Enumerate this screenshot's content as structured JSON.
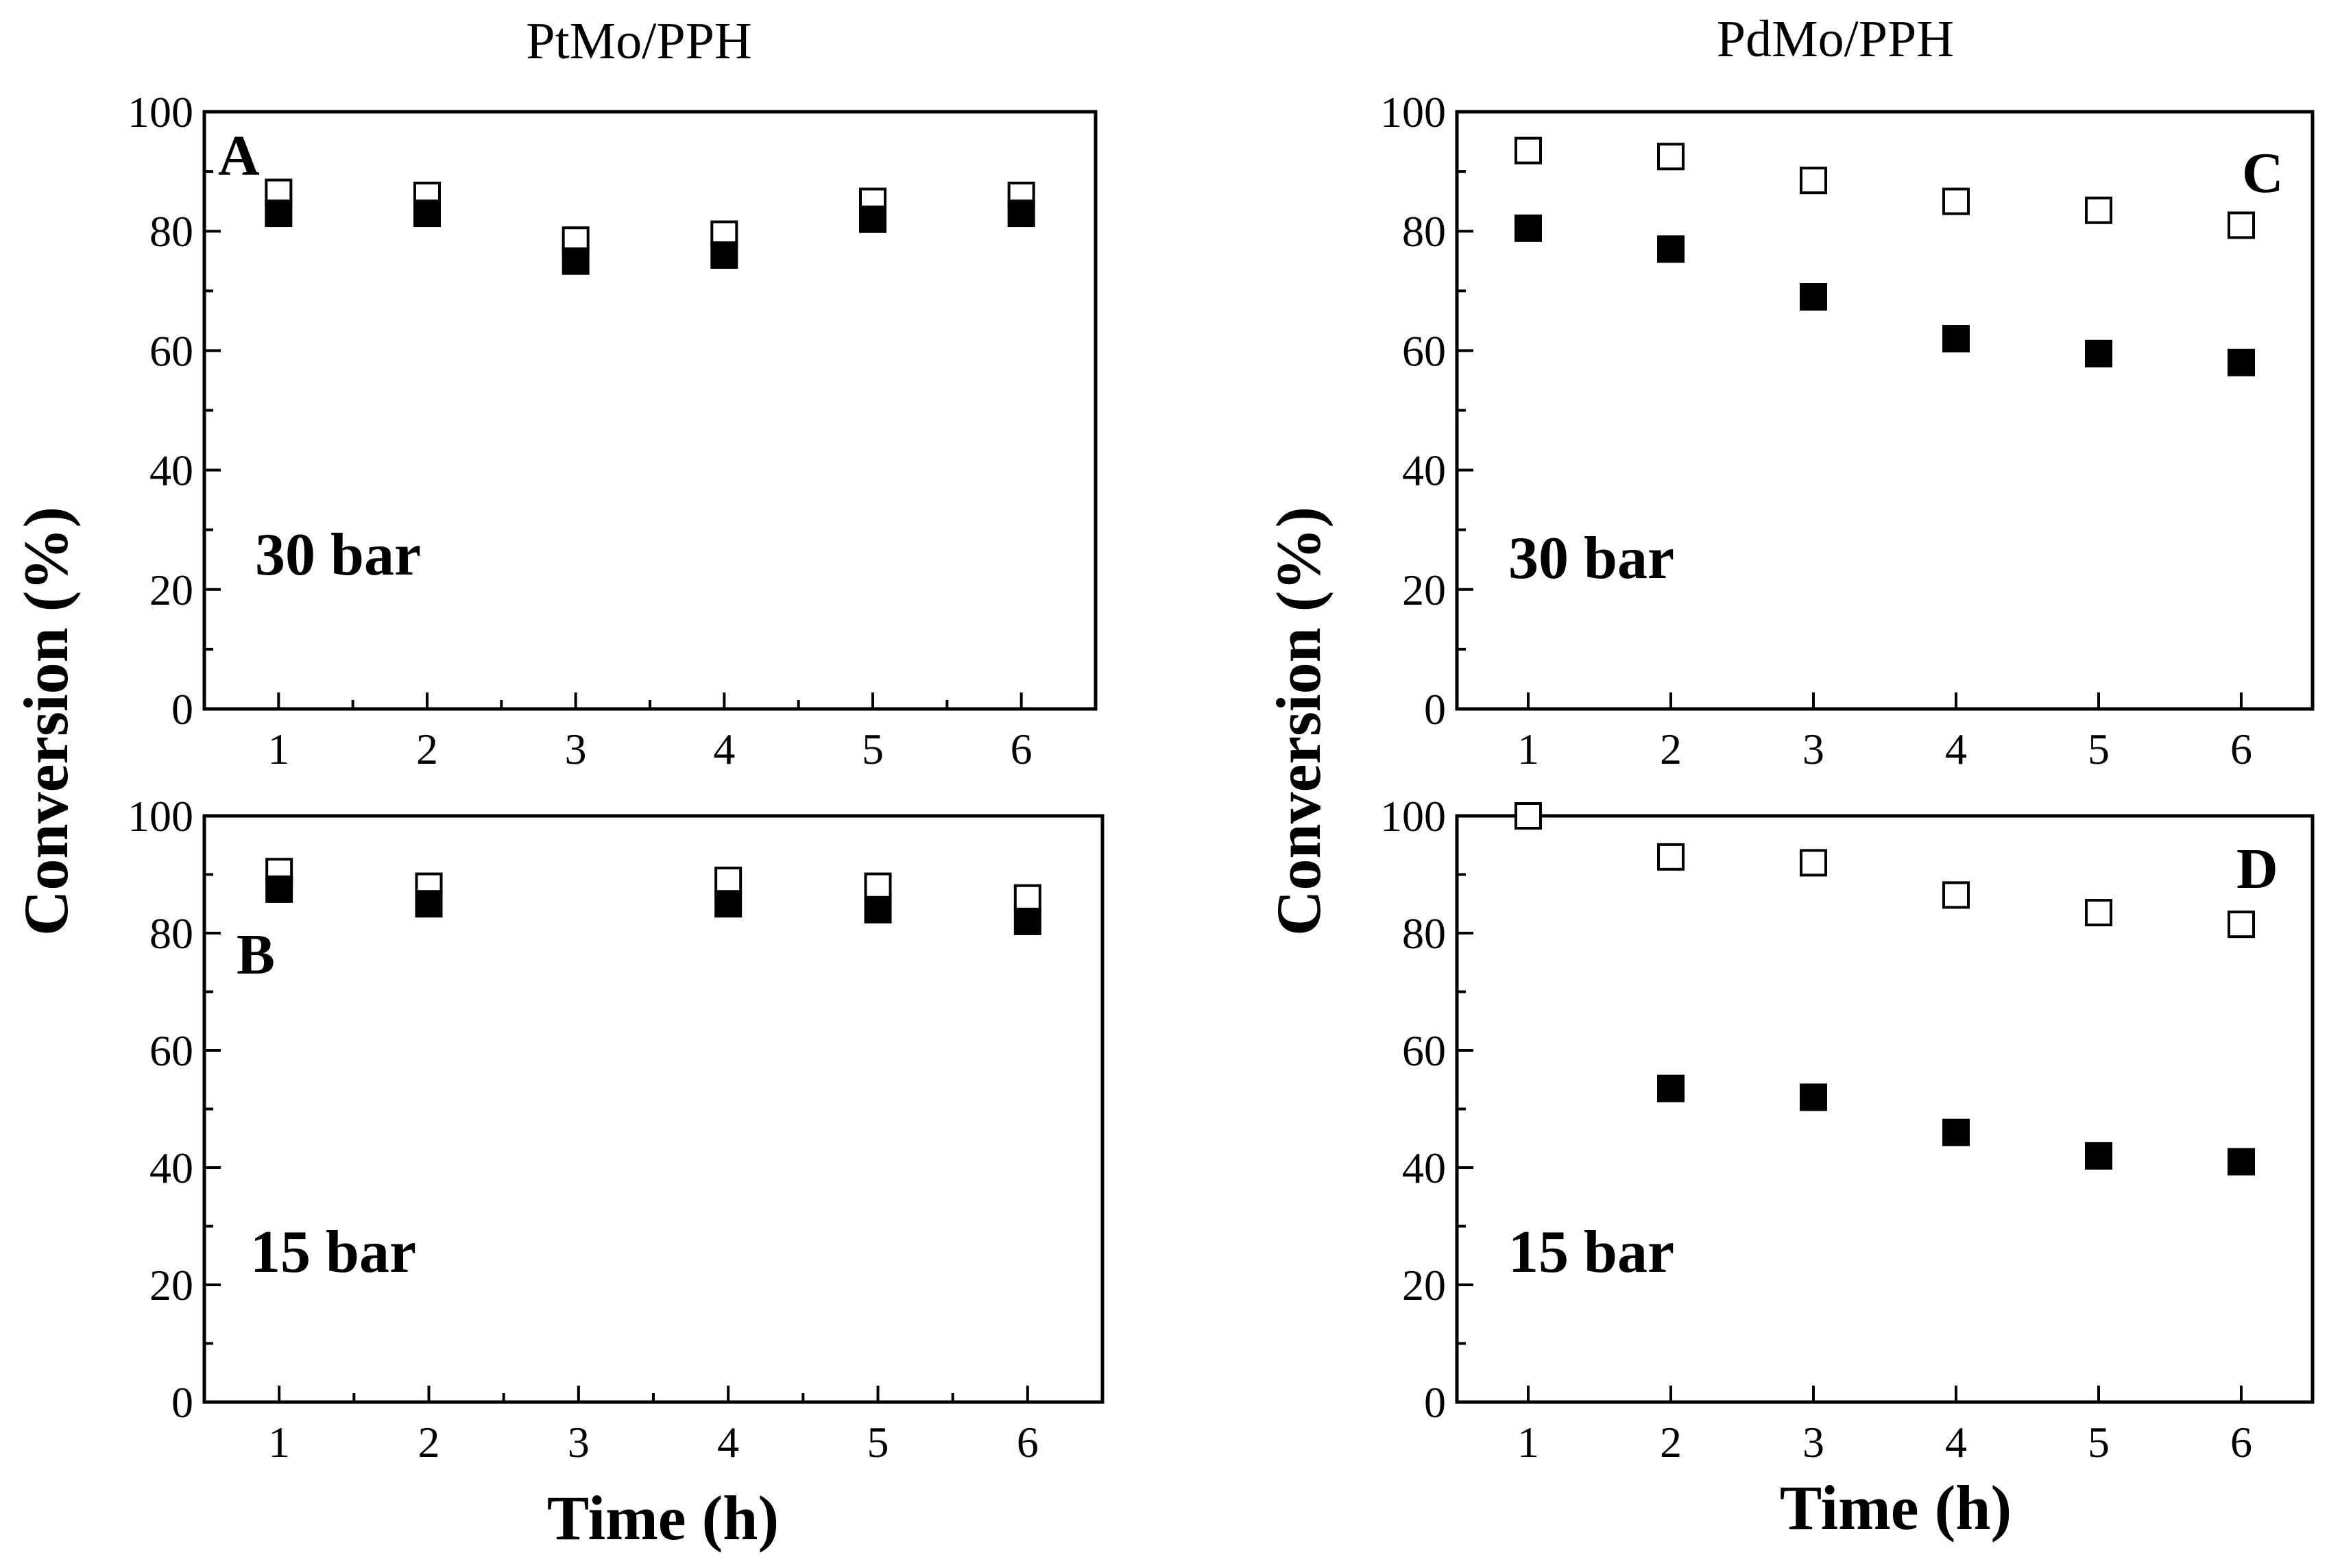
{
  "column_titles": {
    "left": "PtMo/PPH",
    "right": "PdMo/PPH"
  },
  "axis_labels": {
    "y": "Conversion (%)",
    "x": "Time (h)"
  },
  "colors": {
    "filled_marker": "#000000",
    "open_marker": "#ffffff",
    "axes": "#000000"
  },
  "chart_data": [
    {
      "id": "A",
      "type": "scatter",
      "letter": "A",
      "annotation": "30 bar",
      "title": "PtMo/PPH",
      "xlabel": "",
      "ylabel": "Conversion (%)",
      "xlim": [
        0.5,
        6.5
      ],
      "ylim": [
        0,
        100
      ],
      "xticks": [
        1,
        2,
        3,
        4,
        5,
        6
      ],
      "yticks": [
        0,
        20,
        40,
        60,
        80,
        100
      ],
      "grid": false,
      "series": [
        {
          "name": "open",
          "marker": "open-square",
          "x": [
            1,
            2,
            3,
            4,
            5,
            6
          ],
          "y": [
            86.5,
            86,
            78.5,
            79.5,
            85,
            86
          ]
        },
        {
          "name": "filled",
          "marker": "filled-square",
          "x": [
            1,
            2,
            3,
            4,
            5,
            6
          ],
          "y": [
            83,
            83,
            75,
            76,
            82,
            83
          ]
        }
      ]
    },
    {
      "id": "B",
      "type": "scatter",
      "letter": "B",
      "annotation": "15 bar",
      "title": "",
      "xlabel": "Time (h)",
      "ylabel": "Conversion (%)",
      "xlim": [
        0.5,
        6.5
      ],
      "ylim": [
        0,
        100
      ],
      "xticks": [
        1,
        2,
        3,
        4,
        5,
        6
      ],
      "yticks": [
        0,
        20,
        40,
        60,
        80,
        100
      ],
      "grid": false,
      "series": [
        {
          "name": "open",
          "marker": "open-square",
          "x": [
            1,
            2,
            4,
            5,
            6
          ],
          "y": [
            90.5,
            88,
            89,
            88,
            86
          ]
        },
        {
          "name": "filled",
          "marker": "filled-square",
          "x": [
            1,
            2,
            4,
            5,
            6
          ],
          "y": [
            87.5,
            85,
            85,
            84,
            82
          ]
        }
      ]
    },
    {
      "id": "C",
      "type": "scatter",
      "letter": "C",
      "annotation": "30 bar",
      "title": "PdMo/PPH",
      "xlabel": "",
      "ylabel": "Conversion (%)",
      "xlim": [
        0.5,
        6.5
      ],
      "ylim": [
        0,
        100
      ],
      "xticks": [
        1,
        2,
        3,
        4,
        5,
        6
      ],
      "yticks": [
        0,
        20,
        40,
        60,
        80,
        100
      ],
      "grid": false,
      "series": [
        {
          "name": "open",
          "marker": "open-square",
          "x": [
            1,
            2,
            3,
            4,
            5,
            6
          ],
          "y": [
            93.5,
            92.5,
            88.5,
            85,
            83.5,
            81
          ]
        },
        {
          "name": "filled",
          "marker": "filled-square",
          "x": [
            1,
            2,
            3,
            4,
            5,
            6
          ],
          "y": [
            80.5,
            77,
            69,
            62,
            59.5,
            58
          ]
        }
      ]
    },
    {
      "id": "D",
      "type": "scatter",
      "letter": "D",
      "annotation": "15 bar",
      "title": "",
      "xlabel": "Time (h)",
      "ylabel": "Conversion (%)",
      "xlim": [
        0.5,
        6.5
      ],
      "ylim": [
        0,
        100
      ],
      "xticks": [
        1,
        2,
        3,
        4,
        5,
        6
      ],
      "yticks": [
        0,
        20,
        40,
        60,
        80,
        100
      ],
      "grid": false,
      "series": [
        {
          "name": "open",
          "marker": "open-square",
          "x": [
            1,
            2,
            3,
            4,
            5,
            6
          ],
          "y": [
            100,
            93,
            92,
            86.5,
            83.5,
            81.5
          ]
        },
        {
          "name": "filled",
          "marker": "filled-square",
          "x": [
            2,
            3,
            4,
            5,
            6
          ],
          "y": [
            53.5,
            52,
            46,
            42,
            41
          ]
        }
      ]
    }
  ]
}
